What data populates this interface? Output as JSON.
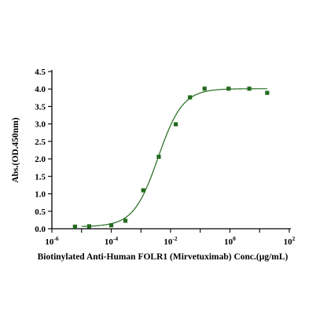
{
  "chart_data": {
    "type": "scatter",
    "xscale": "log10",
    "xlim": [
      1e-06,
      100
    ],
    "ylim": [
      0.0,
      4.5
    ],
    "xlabel": "Biotinylated Anti-Human FOLR1 (Mirvetuximab) Conc.(µg/mL)",
    "ylabel": "Abs.(OD.450nm)",
    "x_ticks": [
      {
        "base": "10",
        "exp": "-6",
        "value": 1e-06
      },
      {
        "base": "10",
        "exp": "-4",
        "value": 0.0001
      },
      {
        "base": "10",
        "exp": "-2",
        "value": 0.01
      },
      {
        "base": "10",
        "exp": "0",
        "value": 1
      },
      {
        "base": "10",
        "exp": "2",
        "value": 100
      }
    ],
    "y_ticks": [
      "0.0",
      "0.5",
      "1.0",
      "1.5",
      "2.0",
      "2.5",
      "3.0",
      "3.5",
      "4.0",
      "4.5"
    ],
    "series": [
      {
        "x": [
          6e-06,
          1.8e-05,
          0.0001,
          0.0003,
          0.0012,
          0.004,
          0.015,
          0.045,
          0.14,
          0.9,
          4.5,
          18
        ],
        "y": [
          0.06,
          0.07,
          0.1,
          0.23,
          1.1,
          2.06,
          2.99,
          3.76,
          4.01,
          4.01,
          4.01,
          3.89
        ],
        "marker": "square",
        "color": "#236b1e"
      }
    ],
    "fit": {
      "model": "4PL",
      "bottom": 0.06,
      "top": 4.01,
      "ec50": 0.0038,
      "hill": 1.05,
      "xrange": [
        1e-05,
        18
      ],
      "color": "#236b1e"
    },
    "grid": false,
    "legend": "none"
  }
}
